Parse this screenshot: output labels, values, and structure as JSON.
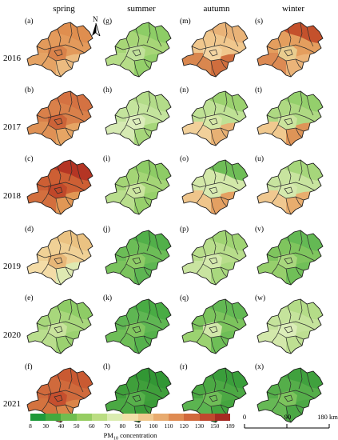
{
  "seasons": [
    "spring",
    "summer",
    "autumn",
    "winter"
  ],
  "years": [
    "2016",
    "2017",
    "2018",
    "2019",
    "2020",
    "2021"
  ],
  "panels": [
    [
      {
        "label": "(a)",
        "colors": [
          "#e39a5b",
          "#df8e4f",
          "#e5a364",
          "#ecbb80",
          "#d9824a",
          "#e8ad6f"
        ]
      },
      {
        "label": "(g)",
        "colors": [
          "#a7d677",
          "#8dcd66",
          "#b6dd88",
          "#94d06a",
          "#c1e19a",
          "#a0d472"
        ]
      },
      {
        "label": "(m)",
        "colors": [
          "#f0c78d",
          "#e9b378",
          "#d9874f",
          "#cf6e3e",
          "#f3d5a2",
          "#b9de8d"
        ]
      },
      {
        "label": "(s)",
        "colors": [
          "#e49e5e",
          "#c4512c",
          "#dc8a53",
          "#ebb479",
          "#e9cd8f",
          "#78c45e"
        ]
      }
    ],
    [
      {
        "label": "(b)",
        "colors": [
          "#d9804a",
          "#d47242",
          "#df9155",
          "#e6a564",
          "#cc6338",
          "#dd8c50"
        ]
      },
      {
        "label": "(h)",
        "colors": [
          "#c4e49d",
          "#b3dc89",
          "#d6eab3",
          "#a6d67a",
          "#dcedbb",
          "#c8e5a2"
        ]
      },
      {
        "label": "(n)",
        "colors": [
          "#bfe195",
          "#9bd16f",
          "#f1d09a",
          "#e8b174",
          "#d6e8a6",
          "#86c962"
        ]
      },
      {
        "label": "(t)",
        "colors": [
          "#aed982",
          "#94cf6c",
          "#f0c98f",
          "#de9457",
          "#cbe49d",
          "#7cc35b"
        ]
      }
    ],
    [
      {
        "label": "(c)",
        "colors": [
          "#cd5f34",
          "#b43524",
          "#d36f3e",
          "#e19755",
          "#c0482a",
          "#dc8a4f"
        ]
      },
      {
        "label": "(i)",
        "colors": [
          "#a4d576",
          "#8ecc66",
          "#b9de8d",
          "#97d06b",
          "#cbe59f",
          "#9fd372"
        ]
      },
      {
        "label": "(o)",
        "colors": [
          "#d3e8a9",
          "#6fbd57",
          "#efc58b",
          "#e4a062",
          "#d8eab1",
          "#45a93f"
        ]
      },
      {
        "label": "(u)",
        "colors": [
          "#c8e49f",
          "#a6d67b",
          "#f0c890",
          "#e8ad6e",
          "#d5e9ad",
          "#98d06f"
        ]
      }
    ],
    [
      {
        "label": "(d)",
        "colors": [
          "#f0d196",
          "#eac282",
          "#f4dca7",
          "#dfeab2",
          "#e8b778",
          "#c8e49e"
        ]
      },
      {
        "label": "(j)",
        "colors": [
          "#6cbd57",
          "#52b04a",
          "#7ac35d",
          "#5db552",
          "#8ecc67",
          "#48ab43"
        ]
      },
      {
        "label": "(p)",
        "colors": [
          "#b8dd8b",
          "#9fd373",
          "#c9e4a0",
          "#a9d87e",
          "#d4e9ad",
          "#93cf6b"
        ]
      },
      {
        "label": "(v)",
        "colors": [
          "#7fc55e",
          "#64b954",
          "#96cf6c",
          "#70bf58",
          "#a8d77d",
          "#5cb551"
        ]
      }
    ],
    [
      {
        "label": "(e)",
        "colors": [
          "#a8d77c",
          "#8ecc66",
          "#b9de8d",
          "#9bd170",
          "#c8e39c",
          "#86c862"
        ]
      },
      {
        "label": "(k)",
        "colors": [
          "#5fb653",
          "#49ac44",
          "#6ebe57",
          "#55b14c",
          "#80c65f",
          "#44a840"
        ]
      },
      {
        "label": "(q)",
        "colors": [
          "#7cc45d",
          "#62b853",
          "#9bd270",
          "#6ebe57",
          "#d1e8a9",
          "#5cb551"
        ]
      },
      {
        "label": "(w)",
        "colors": [
          "#c5e39c",
          "#b4dc88",
          "#d3e8ab",
          "#bedf92",
          "#dbedb8",
          "#acd882"
        ]
      }
    ],
    [
      {
        "label": "(f)",
        "colors": [
          "#d06a3c",
          "#c95a32",
          "#d4733f",
          "#db8549",
          "#c64f2e",
          "#d87d45"
        ]
      },
      {
        "label": "(l)",
        "colors": [
          "#3f9f3b",
          "#329734",
          "#4aa943",
          "#3a9c38",
          "#57b04b",
          "#2f9232"
        ]
      },
      {
        "label": "(r)",
        "colors": [
          "#4ca944",
          "#3a9e3b",
          "#5bb450",
          "#44a53f",
          "#6fbd57",
          "#36993a"
        ]
      },
      {
        "label": "(x)",
        "colors": [
          "#55ae4a",
          "#40a13e",
          "#66b955",
          "#4ba845",
          "#7cc45d",
          "#3b9d3a"
        ]
      }
    ]
  ],
  "legend": {
    "colors": [
      "#1f9a3a",
      "#44a93d",
      "#6fbd4f",
      "#96cd62",
      "#bbdd82",
      "#dbecb1",
      "#f3e1a9",
      "#f0c98e",
      "#e8ab6f",
      "#df8b52",
      "#d1683c",
      "#c0482e",
      "#a62a22"
    ],
    "ticks": [
      "8",
      "30",
      "40",
      "50",
      "60",
      "70",
      "80",
      "90",
      "100",
      "110",
      "120",
      "130",
      "150",
      "189"
    ],
    "title_prefix": "PM",
    "title_sub": "10",
    "title_suffix": " concentration"
  },
  "north_label": "N",
  "scalebar": {
    "labels": [
      "0",
      "90",
      "180 km"
    ]
  }
}
